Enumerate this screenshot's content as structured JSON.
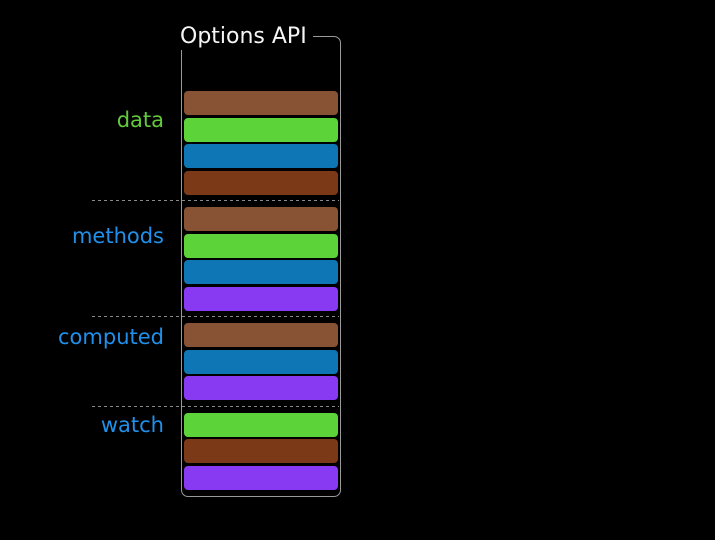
{
  "title": "Options API",
  "palette": {
    "background": "#000000",
    "frame_border": "#9a9a9a",
    "title_color": "#f5f5f5",
    "separator": "#8a8a8a",
    "bar_brown": "#875334",
    "bar_green": "#5dd33a",
    "bar_blue": "#0f76b5",
    "bar_darkbrown": "#7b3918",
    "bar_purple": "#8839f2",
    "label_green": "#62ca3c",
    "label_blue": "#2090ea"
  },
  "groups": [
    {
      "label": "data",
      "label_color": "label_green",
      "bars": [
        "bar_brown",
        "bar_green",
        "bar_blue",
        "bar_darkbrown"
      ]
    },
    {
      "label": "methods",
      "label_color": "label_blue",
      "bars": [
        "bar_brown",
        "bar_green",
        "bar_blue",
        "bar_purple"
      ]
    },
    {
      "label": "computed",
      "label_color": "label_blue",
      "bars": [
        "bar_brown",
        "bar_blue",
        "bar_purple"
      ]
    },
    {
      "label": "watch",
      "label_color": "label_blue",
      "bars": [
        "bar_green",
        "bar_darkbrown",
        "bar_purple"
      ]
    }
  ]
}
